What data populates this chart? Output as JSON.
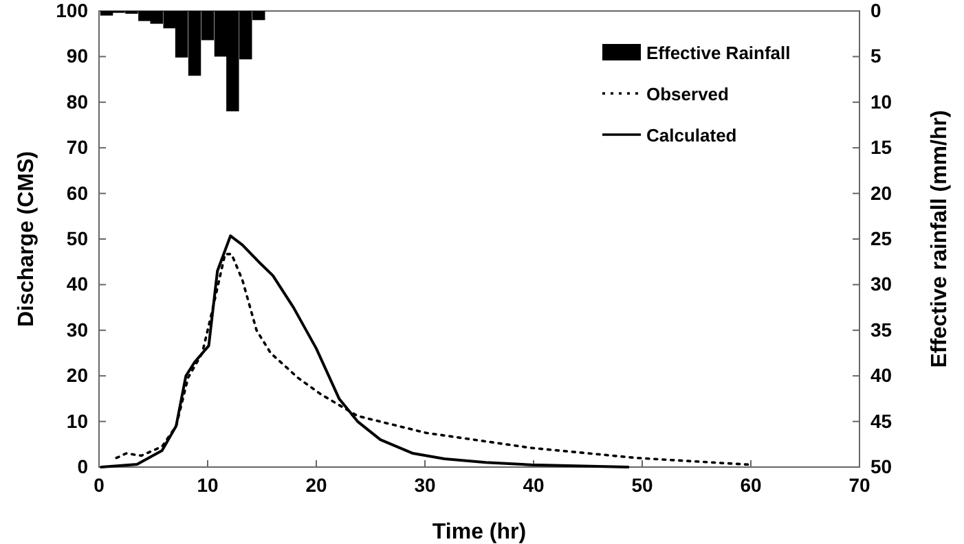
{
  "chart_data": {
    "type": "line",
    "xlabel": "Time (hr)",
    "ylabel": "Discharge (CMS)",
    "y2label": "Effective rainfall (mm/hr)",
    "xlim": [
      0,
      70
    ],
    "xticks": [
      0,
      10,
      20,
      30,
      40,
      50,
      60,
      70
    ],
    "ylim": [
      0,
      100
    ],
    "yticks": [
      0,
      10,
      20,
      30,
      40,
      50,
      60,
      70,
      80,
      90,
      100
    ],
    "y2lim": [
      50,
      0
    ],
    "y2ticks": [
      0,
      5,
      10,
      15,
      20,
      25,
      30,
      35,
      40,
      45,
      50
    ],
    "legend": "top right",
    "grid": false,
    "series": [
      {
        "name": "Effective Rainfall",
        "type": "bar",
        "axis": "y2",
        "color": "#000000",
        "x": [
          0.7,
          1.8,
          3.0,
          4.2,
          5.3,
          6.5,
          7.6,
          8.8,
          10.0,
          11.2,
          12.3,
          13.5,
          14.7
        ],
        "values": [
          0.5,
          0.2,
          0.3,
          1.1,
          1.4,
          1.9,
          5.1,
          7.1,
          3.2,
          5,
          11,
          5.3,
          1
        ]
      },
      {
        "name": "Observed",
        "line_style": "dotted",
        "color": "#000000",
        "x": [
          1.6,
          2.5,
          3.9,
          5.8,
          7.1,
          8.2,
          9.5,
          10.3,
          11.6,
          12.2,
          13.2,
          14.5,
          15.8,
          18.3,
          20.4,
          23.8,
          30.1,
          39.8,
          49.5,
          60.1
        ],
        "values": [
          2,
          3,
          2.5,
          4.5,
          9,
          19.6,
          25,
          33,
          46.7,
          46.7,
          41,
          30,
          25,
          19.6,
          16,
          11.2,
          7.5,
          4.2,
          2,
          0.5
        ]
      },
      {
        "name": "Calculated",
        "line_style": "solid",
        "color": "#000000",
        "x": [
          0.2,
          3.5,
          5.8,
          7.1,
          8,
          8.8,
          10.1,
          10.9,
          12.1,
          13.2,
          14.7,
          16,
          17.9,
          20,
          22.1,
          23.8,
          25.9,
          28.9,
          31.8,
          35.6,
          39.8,
          48.7
        ],
        "values": [
          0,
          0.6,
          3.6,
          9,
          20,
          23,
          26.6,
          43,
          50.7,
          48.7,
          45,
          42,
          35,
          26,
          15,
          10,
          6,
          3,
          1.8,
          1,
          0.5,
          0
        ]
      }
    ]
  }
}
